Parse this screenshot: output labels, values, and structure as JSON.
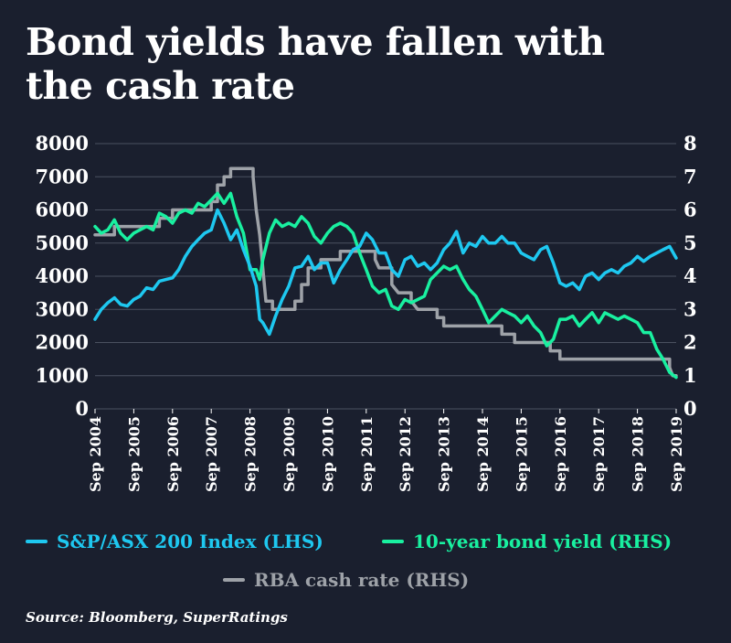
{
  "title": "Bond yields have fallen with the cash rate",
  "source": "Source: Bloomberg, SuperRatings",
  "colors": {
    "background": "#1a1f2e",
    "sp_asx": "#1ec8f0",
    "bond": "#19f0a0",
    "cash": "#9ea2a8",
    "grid": "#4a5060"
  },
  "legend": [
    {
      "label": "S&P/ASX 200 Index (LHS)",
      "series": "sp_asx"
    },
    {
      "label": "10-year bond yield (RHS)",
      "series": "bond"
    },
    {
      "label": "RBA cash rate (RHS)",
      "series": "cash"
    }
  ],
  "chart_data": {
    "type": "line",
    "title": "Bond yields have fallen with the cash rate",
    "x_ticks": [
      "Sep 2004",
      "Sep 2005",
      "Sep 2006",
      "Sep 2007",
      "Sep 2008",
      "Sep 2009",
      "Sep 2010",
      "Sep 2011",
      "Sep 2012",
      "Sep 2013",
      "Sep 2014",
      "Sep 2015",
      "Sep 2016",
      "Sep 2017",
      "Sep 2018",
      "Sep 2019"
    ],
    "xlim": [
      2004.67,
      2019.67
    ],
    "y_left": {
      "ticks": [
        0,
        1000,
        2000,
        3000,
        4000,
        5000,
        6000,
        7000,
        8000
      ],
      "lim": [
        0,
        8000
      ]
    },
    "y_right": {
      "ticks": [
        0,
        1,
        2,
        3,
        4,
        5,
        6,
        7,
        8
      ],
      "lim": [
        0,
        8
      ]
    },
    "grid": true,
    "legend_position": "bottom",
    "series": [
      {
        "name": "S&P/ASX 200 Index (LHS)",
        "axis": "left",
        "color": "#1ec8f0",
        "points": [
          [
            2004.67,
            2700
          ],
          [
            2004.83,
            3000
          ],
          [
            2005.0,
            3200
          ],
          [
            2005.17,
            3350
          ],
          [
            2005.33,
            3150
          ],
          [
            2005.5,
            3100
          ],
          [
            2005.67,
            3300
          ],
          [
            2005.83,
            3400
          ],
          [
            2006.0,
            3650
          ],
          [
            2006.17,
            3600
          ],
          [
            2006.33,
            3850
          ],
          [
            2006.5,
            3900
          ],
          [
            2006.67,
            3950
          ],
          [
            2006.83,
            4200
          ],
          [
            2007.0,
            4600
          ],
          [
            2007.17,
            4900
          ],
          [
            2007.33,
            5100
          ],
          [
            2007.5,
            5300
          ],
          [
            2007.67,
            5400
          ],
          [
            2007.83,
            6000
          ],
          [
            2008.0,
            5600
          ],
          [
            2008.17,
            5100
          ],
          [
            2008.33,
            5400
          ],
          [
            2008.5,
            4800
          ],
          [
            2008.67,
            4300
          ],
          [
            2008.83,
            3700
          ],
          [
            2008.92,
            2700
          ],
          [
            2009.0,
            2600
          ],
          [
            2009.17,
            2250
          ],
          [
            2009.33,
            2800
          ],
          [
            2009.5,
            3300
          ],
          [
            2009.67,
            3700
          ],
          [
            2009.83,
            4250
          ],
          [
            2010.0,
            4300
          ],
          [
            2010.17,
            4600
          ],
          [
            2010.33,
            4200
          ],
          [
            2010.5,
            4400
          ],
          [
            2010.67,
            4400
          ],
          [
            2010.83,
            3800
          ],
          [
            2011.0,
            4200
          ],
          [
            2011.17,
            4500
          ],
          [
            2011.33,
            4800
          ],
          [
            2011.5,
            4900
          ],
          [
            2011.67,
            5300
          ],
          [
            2011.83,
            5100
          ],
          [
            2012.0,
            4700
          ],
          [
            2012.17,
            4700
          ],
          [
            2012.33,
            4200
          ],
          [
            2012.5,
            4000
          ],
          [
            2012.67,
            4500
          ],
          [
            2012.83,
            4600
          ],
          [
            2013.0,
            4300
          ],
          [
            2013.17,
            4400
          ],
          [
            2013.33,
            4200
          ],
          [
            2013.5,
            4400
          ],
          [
            2013.67,
            4800
          ],
          [
            2013.83,
            5000
          ],
          [
            2014.0,
            5350
          ],
          [
            2014.17,
            4700
          ],
          [
            2014.33,
            5000
          ],
          [
            2014.5,
            4900
          ],
          [
            2014.67,
            5200
          ],
          [
            2014.83,
            5000
          ],
          [
            2015.0,
            5000
          ],
          [
            2015.17,
            5200
          ],
          [
            2015.33,
            5000
          ],
          [
            2015.5,
            5000
          ],
          [
            2015.67,
            4700
          ],
          [
            2015.83,
            4600
          ],
          [
            2016.0,
            4500
          ],
          [
            2016.17,
            4800
          ],
          [
            2016.33,
            4900
          ],
          [
            2016.5,
            4400
          ],
          [
            2016.67,
            3800
          ],
          [
            2016.83,
            3700
          ],
          [
            2017.0,
            3800
          ],
          [
            2017.17,
            3600
          ],
          [
            2017.33,
            4000
          ],
          [
            2017.5,
            4100
          ],
          [
            2017.67,
            3900
          ],
          [
            2017.83,
            4100
          ],
          [
            2018.0,
            4200
          ],
          [
            2018.17,
            4100
          ],
          [
            2018.33,
            4300
          ],
          [
            2018.5,
            4400
          ],
          [
            2018.67,
            4600
          ],
          [
            2018.83,
            4450
          ],
          [
            2019.0,
            4600
          ],
          [
            2019.17,
            4700
          ],
          [
            2019.33,
            4800
          ],
          [
            2019.5,
            4900
          ],
          [
            2019.67,
            4550
          ]
        ]
      },
      {
        "name": "10-year bond yield (RHS)",
        "axis": "right",
        "color": "#19f0a0",
        "points": [
          [
            2004.67,
            5.5
          ],
          [
            2004.83,
            5.3
          ],
          [
            2005.0,
            5.4
          ],
          [
            2005.17,
            5.7
          ],
          [
            2005.33,
            5.3
          ],
          [
            2005.5,
            5.1
          ],
          [
            2005.67,
            5.3
          ],
          [
            2005.83,
            5.4
          ],
          [
            2006.0,
            5.5
          ],
          [
            2006.17,
            5.4
          ],
          [
            2006.33,
            5.9
          ],
          [
            2006.5,
            5.8
          ],
          [
            2006.67,
            5.6
          ],
          [
            2006.83,
            5.9
          ],
          [
            2007.0,
            6.0
          ],
          [
            2007.17,
            5.9
          ],
          [
            2007.33,
            6.2
          ],
          [
            2007.5,
            6.1
          ],
          [
            2007.67,
            6.3
          ],
          [
            2007.83,
            6.5
          ],
          [
            2008.0,
            6.2
          ],
          [
            2008.17,
            6.5
          ],
          [
            2008.33,
            5.8
          ],
          [
            2008.5,
            5.3
          ],
          [
            2008.67,
            4.2
          ],
          [
            2008.83,
            4.2
          ],
          [
            2008.92,
            3.9
          ],
          [
            2009.0,
            4.5
          ],
          [
            2009.17,
            5.3
          ],
          [
            2009.33,
            5.7
          ],
          [
            2009.5,
            5.5
          ],
          [
            2009.67,
            5.6
          ],
          [
            2009.83,
            5.5
          ],
          [
            2010.0,
            5.8
          ],
          [
            2010.17,
            5.6
          ],
          [
            2010.33,
            5.2
          ],
          [
            2010.5,
            5.0
          ],
          [
            2010.67,
            5.3
          ],
          [
            2010.83,
            5.5
          ],
          [
            2011.0,
            5.6
          ],
          [
            2011.17,
            5.5
          ],
          [
            2011.33,
            5.3
          ],
          [
            2011.5,
            4.7
          ],
          [
            2011.67,
            4.2
          ],
          [
            2011.83,
            3.7
          ],
          [
            2012.0,
            3.5
          ],
          [
            2012.17,
            3.6
          ],
          [
            2012.33,
            3.1
          ],
          [
            2012.5,
            3.0
          ],
          [
            2012.67,
            3.3
          ],
          [
            2012.83,
            3.2
          ],
          [
            2013.0,
            3.3
          ],
          [
            2013.17,
            3.4
          ],
          [
            2013.33,
            3.9
          ],
          [
            2013.5,
            4.1
          ],
          [
            2013.67,
            4.3
          ],
          [
            2013.83,
            4.2
          ],
          [
            2014.0,
            4.3
          ],
          [
            2014.17,
            3.9
          ],
          [
            2014.33,
            3.6
          ],
          [
            2014.5,
            3.4
          ],
          [
            2014.67,
            3.0
          ],
          [
            2014.83,
            2.6
          ],
          [
            2015.0,
            2.8
          ],
          [
            2015.17,
            3.0
          ],
          [
            2015.33,
            2.9
          ],
          [
            2015.5,
            2.8
          ],
          [
            2015.67,
            2.6
          ],
          [
            2015.83,
            2.8
          ],
          [
            2016.0,
            2.5
          ],
          [
            2016.17,
            2.3
          ],
          [
            2016.33,
            1.9
          ],
          [
            2016.5,
            2.1
          ],
          [
            2016.67,
            2.7
          ],
          [
            2016.83,
            2.7
          ],
          [
            2017.0,
            2.8
          ],
          [
            2017.17,
            2.5
          ],
          [
            2017.33,
            2.7
          ],
          [
            2017.5,
            2.9
          ],
          [
            2017.67,
            2.6
          ],
          [
            2017.83,
            2.9
          ],
          [
            2018.0,
            2.8
          ],
          [
            2018.17,
            2.7
          ],
          [
            2018.33,
            2.8
          ],
          [
            2018.5,
            2.7
          ],
          [
            2018.67,
            2.6
          ],
          [
            2018.83,
            2.3
          ],
          [
            2019.0,
            2.3
          ],
          [
            2019.17,
            1.8
          ],
          [
            2019.33,
            1.5
          ],
          [
            2019.5,
            1.1
          ],
          [
            2019.67,
            0.95
          ]
        ]
      },
      {
        "name": "RBA cash rate (RHS)",
        "axis": "right",
        "color": "#9ea2a8",
        "points": [
          [
            2004.67,
            5.25
          ],
          [
            2005.17,
            5.25
          ],
          [
            2005.17,
            5.5
          ],
          [
            2006.33,
            5.5
          ],
          [
            2006.33,
            5.75
          ],
          [
            2006.67,
            5.75
          ],
          [
            2006.67,
            6.0
          ],
          [
            2007.17,
            6.0
          ],
          [
            2007.67,
            6.0
          ],
          [
            2007.67,
            6.25
          ],
          [
            2007.83,
            6.25
          ],
          [
            2007.83,
            6.75
          ],
          [
            2008.0,
            6.75
          ],
          [
            2008.0,
            7.0
          ],
          [
            2008.17,
            7.0
          ],
          [
            2008.17,
            7.25
          ],
          [
            2008.75,
            7.25
          ],
          [
            2008.75,
            7.0
          ],
          [
            2008.83,
            6.0
          ],
          [
            2008.92,
            5.25
          ],
          [
            2009.0,
            4.25
          ],
          [
            2009.08,
            3.25
          ],
          [
            2009.25,
            3.25
          ],
          [
            2009.25,
            3.0
          ],
          [
            2009.83,
            3.0
          ],
          [
            2009.83,
            3.25
          ],
          [
            2010.0,
            3.25
          ],
          [
            2010.0,
            3.75
          ],
          [
            2010.17,
            3.75
          ],
          [
            2010.17,
            4.25
          ],
          [
            2010.5,
            4.25
          ],
          [
            2010.5,
            4.5
          ],
          [
            2011.0,
            4.5
          ],
          [
            2011.0,
            4.75
          ],
          [
            2011.9,
            4.75
          ],
          [
            2011.9,
            4.5
          ],
          [
            2012.0,
            4.25
          ],
          [
            2012.33,
            4.25
          ],
          [
            2012.33,
            3.75
          ],
          [
            2012.5,
            3.5
          ],
          [
            2012.83,
            3.5
          ],
          [
            2012.83,
            3.25
          ],
          [
            2013.0,
            3.0
          ],
          [
            2013.5,
            3.0
          ],
          [
            2013.5,
            2.75
          ],
          [
            2013.67,
            2.75
          ],
          [
            2013.67,
            2.5
          ],
          [
            2015.17,
            2.5
          ],
          [
            2015.17,
            2.25
          ],
          [
            2015.5,
            2.25
          ],
          [
            2015.5,
            2.0
          ],
          [
            2016.42,
            2.0
          ],
          [
            2016.42,
            1.75
          ],
          [
            2016.67,
            1.75
          ],
          [
            2016.67,
            1.5
          ],
          [
            2019.5,
            1.5
          ],
          [
            2019.5,
            1.25
          ],
          [
            2019.58,
            1.0
          ],
          [
            2019.67,
            1.0
          ]
        ]
      }
    ]
  }
}
